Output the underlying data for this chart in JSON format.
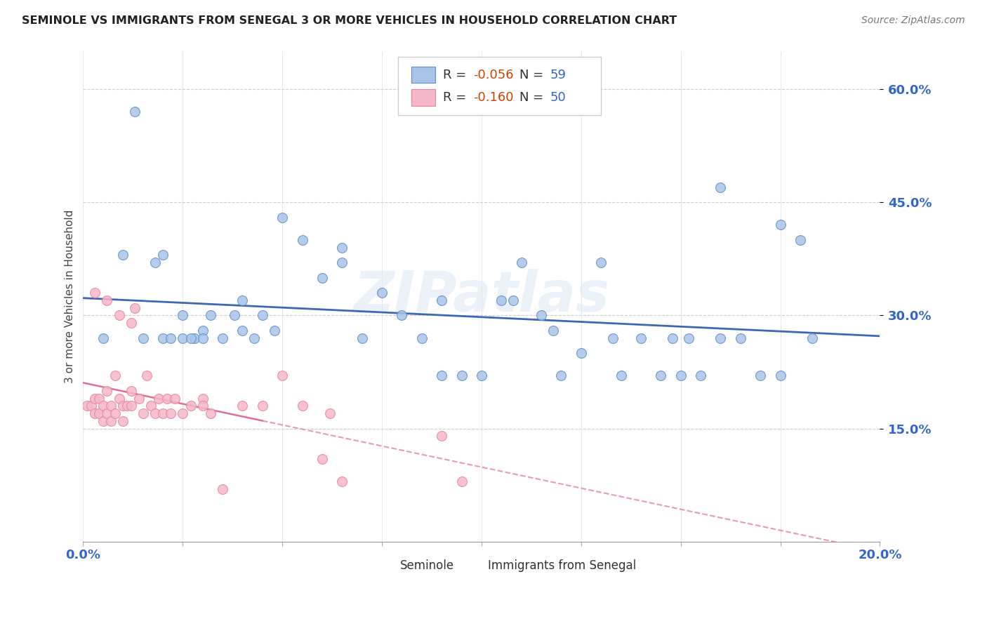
{
  "title": "SEMINOLE VS IMMIGRANTS FROM SENEGAL 3 OR MORE VEHICLES IN HOUSEHOLD CORRELATION CHART",
  "source": "Source: ZipAtlas.com",
  "ylabel": "3 or more Vehicles in Household",
  "xmin": 0.0,
  "xmax": 0.2,
  "ymin": 0.0,
  "ymax": 0.65,
  "yticks": [
    0.15,
    0.3,
    0.45,
    0.6
  ],
  "ytick_labels": [
    "15.0%",
    "30.0%",
    "45.0%",
    "60.0%"
  ],
  "xticks": [
    0.0,
    0.025,
    0.05,
    0.075,
    0.1,
    0.125,
    0.15,
    0.175,
    0.2
  ],
  "xtick_labels": [
    "0.0%",
    "",
    "",
    "",
    "",
    "",
    "",
    "",
    "20.0%"
  ],
  "blue_color": "#a8c4e8",
  "blue_edge_color": "#5b8ecb",
  "blue_line_color": "#3d68b0",
  "pink_color": "#f5b8c8",
  "pink_edge_color": "#e8829a",
  "pink_line_color": "#e07090",
  "watermark": "ZIPatlas",
  "seminole_x": [
    0.005,
    0.01,
    0.015,
    0.02,
    0.02,
    0.025,
    0.025,
    0.028,
    0.03,
    0.03,
    0.032,
    0.035,
    0.038,
    0.04,
    0.04,
    0.043,
    0.045,
    0.048,
    0.05,
    0.055,
    0.06,
    0.065,
    0.065,
    0.07,
    0.075,
    0.08,
    0.085,
    0.09,
    0.09,
    0.095,
    0.1,
    0.105,
    0.108,
    0.11,
    0.115,
    0.118,
    0.12,
    0.125,
    0.13,
    0.133,
    0.135,
    0.14,
    0.145,
    0.148,
    0.15,
    0.152,
    0.155,
    0.16,
    0.16,
    0.165,
    0.17,
    0.175,
    0.18,
    0.183,
    0.013,
    0.018,
    0.022,
    0.027,
    0.175
  ],
  "seminole_y": [
    0.27,
    0.38,
    0.27,
    0.38,
    0.27,
    0.27,
    0.3,
    0.27,
    0.28,
    0.27,
    0.3,
    0.27,
    0.3,
    0.28,
    0.32,
    0.27,
    0.3,
    0.28,
    0.43,
    0.4,
    0.35,
    0.37,
    0.39,
    0.27,
    0.33,
    0.3,
    0.27,
    0.22,
    0.32,
    0.22,
    0.22,
    0.32,
    0.32,
    0.37,
    0.3,
    0.28,
    0.22,
    0.25,
    0.37,
    0.27,
    0.22,
    0.27,
    0.22,
    0.27,
    0.22,
    0.27,
    0.22,
    0.47,
    0.27,
    0.27,
    0.22,
    0.22,
    0.4,
    0.27,
    0.57,
    0.37,
    0.27,
    0.27,
    0.42
  ],
  "senegal_x": [
    0.001,
    0.002,
    0.003,
    0.003,
    0.004,
    0.004,
    0.005,
    0.005,
    0.006,
    0.006,
    0.007,
    0.007,
    0.008,
    0.008,
    0.009,
    0.01,
    0.01,
    0.011,
    0.012,
    0.012,
    0.013,
    0.014,
    0.015,
    0.016,
    0.017,
    0.018,
    0.019,
    0.02,
    0.021,
    0.022,
    0.023,
    0.025,
    0.027,
    0.03,
    0.03,
    0.032,
    0.035,
    0.04,
    0.045,
    0.05,
    0.055,
    0.06,
    0.062,
    0.065,
    0.09,
    0.095,
    0.003,
    0.006,
    0.009,
    0.012
  ],
  "senegal_y": [
    0.18,
    0.18,
    0.19,
    0.17,
    0.19,
    0.17,
    0.18,
    0.16,
    0.2,
    0.17,
    0.18,
    0.16,
    0.22,
    0.17,
    0.19,
    0.18,
    0.16,
    0.18,
    0.2,
    0.18,
    0.31,
    0.19,
    0.17,
    0.22,
    0.18,
    0.17,
    0.19,
    0.17,
    0.19,
    0.17,
    0.19,
    0.17,
    0.18,
    0.19,
    0.18,
    0.17,
    0.07,
    0.18,
    0.18,
    0.22,
    0.18,
    0.11,
    0.17,
    0.08,
    0.14,
    0.08,
    0.33,
    0.32,
    0.3,
    0.29
  ]
}
